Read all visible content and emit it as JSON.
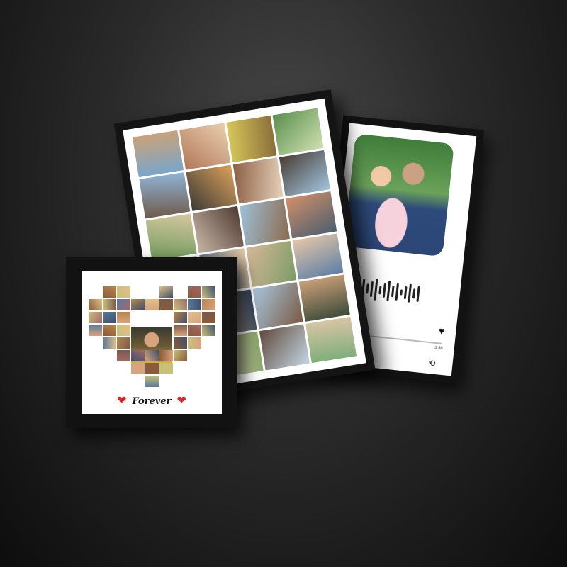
{
  "products": {
    "heart_frame": {
      "caption": "Forever"
    },
    "music_frame": {
      "time_end": "3:56"
    }
  },
  "icons": {
    "heart_left": "red-heart-icon",
    "heart_right": "red-heart-icon",
    "like": "heart-icon",
    "repeat": "repeat-icon"
  },
  "colors": {
    "background_center": "#4a4a4a",
    "background_edge": "#0d0d0d",
    "frame": "#121212",
    "accent_heart": "#e02424"
  }
}
